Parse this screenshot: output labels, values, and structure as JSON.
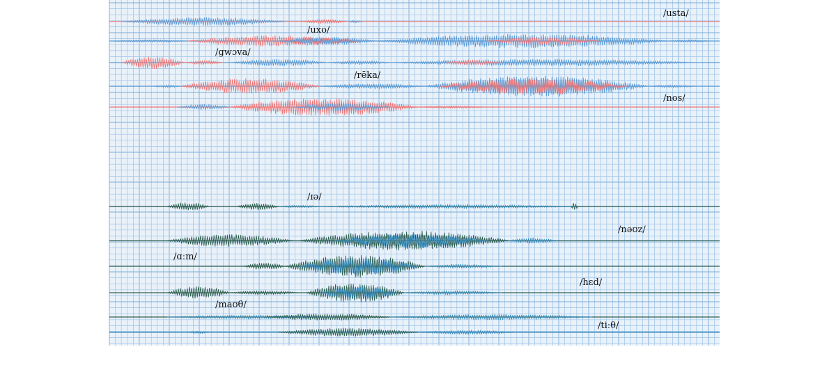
{
  "colors": {
    "background": "#ffffff",
    "grid_background": "#e9f1f9",
    "grid_line": "#9ec3e6",
    "language_a_primary": "#5b9bd5",
    "language_a_secondary": "#ee7777",
    "language_b_primary": "#2f5f4f",
    "language_b_secondary": "#3a8fbf"
  },
  "groups": [
    {
      "id": "top",
      "words": [
        {
          "label": "/usta/"
        },
        {
          "label": "/uxo/"
        },
        {
          "label": "/gwɔva/"
        },
        {
          "label": "/rēka/"
        },
        {
          "label": "/nos/"
        }
      ]
    },
    {
      "id": "bottom",
      "words": [
        {
          "label": "/ɪə/"
        },
        {
          "label": "/nəʊz/"
        },
        {
          "label": "/ɑːm/"
        },
        {
          "label": "/hɛd/"
        },
        {
          "label": "/maʊθ/"
        },
        {
          "label": "/tiːθ/"
        }
      ]
    }
  ]
}
